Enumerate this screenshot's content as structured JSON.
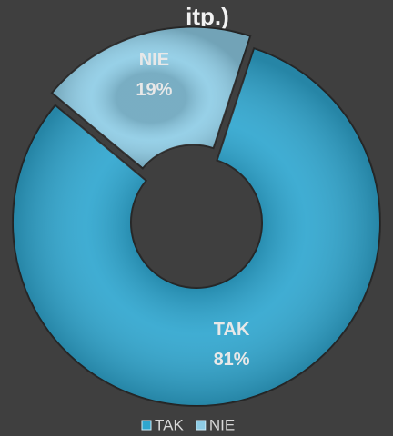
{
  "chart_data": {
    "type": "donut",
    "title": "itp.)",
    "categories": [
      "TAK",
      "NIE"
    ],
    "values": [
      81,
      19
    ],
    "value_labels": [
      "81%",
      "19%"
    ],
    "colors": [
      "#2fa6cf",
      "#8ecce5"
    ],
    "legend": "bottom"
  }
}
